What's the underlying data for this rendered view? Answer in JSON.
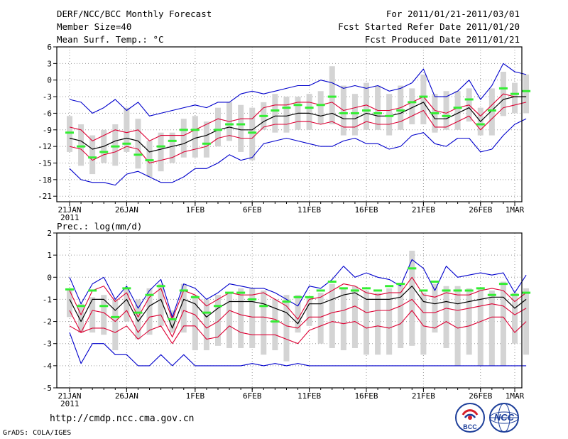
{
  "header": {
    "title": "DERF/NCC/BCC Monthly Forecast",
    "member_size": "Member Size=40",
    "variable": "Mean Surf. Temp.: °C",
    "period": "For 2011/01/21-2011/03/01",
    "started": "Fcst Started Refer Date 2011/01/20",
    "produced": "Fcst Produced Date 2011/01/21"
  },
  "footer": {
    "url": "http://cmdp.ncc.cma.gov.cn",
    "grads": "GrADS: COLA/IGES",
    "logo_bcc": "BCC",
    "logo_ncc": "NCC"
  },
  "colors": {
    "envelope": "#0000cc",
    "spread": "#dd0033",
    "mean": "#000000",
    "member_mark": "#33ee33",
    "box": "#d4d4d4"
  },
  "chart_data": [
    {
      "type": "line",
      "title": "Mean Surf. Temp.: °C",
      "x_ticks": [
        "21JAN",
        "26JAN",
        "1FEB",
        "6FEB",
        "11FEB",
        "16FEB",
        "21FEB",
        "26FEB",
        "1MAR"
      ],
      "x_tick_days": [
        0,
        5,
        11,
        16,
        21,
        26,
        31,
        36,
        39
      ],
      "x_year": "2011",
      "ylim": [
        -22,
        6
      ],
      "y_ticks": [
        6,
        3,
        0,
        -3,
        -6,
        -9,
        -12,
        -15,
        -18,
        -21
      ],
      "y_tick_labels": [
        "6",
        "3",
        "0",
        "-3",
        "-6",
        "-9",
        "-12",
        "-15",
        "-18",
        "-21"
      ],
      "grid": true,
      "series": [
        {
          "name": "max",
          "values": [
            -3.5,
            -4,
            -6,
            -5,
            -3.5,
            -5.5,
            -4,
            -6.5,
            -6,
            -5.5,
            -5,
            -4.5,
            -5,
            -4,
            -4,
            -2.5,
            -2,
            -2.5,
            -2,
            -1.5,
            -1,
            -1,
            0,
            -0.5,
            -1.5,
            -1,
            -1.5,
            -1,
            -2,
            -1.5,
            -0.5,
            2,
            -3,
            -3,
            -2,
            0,
            -3.5,
            -1,
            3,
            1.5,
            1
          ]
        },
        {
          "name": "upper",
          "values": [
            -8.5,
            -9,
            -11,
            -10,
            -9,
            -9.5,
            -9,
            -11,
            -10,
            -10,
            -10,
            -9,
            -8,
            -7,
            -7.5,
            -7,
            -7,
            -5,
            -4.5,
            -4.5,
            -4,
            -4,
            -4.5,
            -4,
            -5.5,
            -5,
            -4.5,
            -5.5,
            -5.5,
            -5,
            -4,
            -3,
            -5.5,
            -6,
            -5,
            -4.5,
            -6.5,
            -4.5,
            -2.5,
            -3,
            -3
          ]
        },
        {
          "name": "mean",
          "values": [
            -10.5,
            -11,
            -12.5,
            -12,
            -11,
            -10.5,
            -11,
            -13,
            -12.5,
            -12,
            -11.5,
            -10.5,
            -10,
            -9,
            -8.5,
            -9,
            -9,
            -7.5,
            -6.5,
            -6.5,
            -6,
            -6,
            -6.5,
            -6,
            -7,
            -7,
            -6,
            -6.5,
            -6.5,
            -6,
            -5,
            -4,
            -7,
            -7,
            -6,
            -5,
            -7.5,
            -5.5,
            -3.5,
            -3,
            -3
          ]
        },
        {
          "name": "lower",
          "values": [
            -12,
            -12.5,
            -14.5,
            -13.5,
            -13,
            -12,
            -12.5,
            -15,
            -14.5,
            -14,
            -13,
            -12.5,
            -12,
            -10.5,
            -10,
            -10.5,
            -10.5,
            -8.5,
            -8,
            -8,
            -7.5,
            -7.5,
            -8,
            -7.5,
            -8.5,
            -8.5,
            -7.5,
            -8,
            -8,
            -7.5,
            -6.5,
            -5.5,
            -8.5,
            -8.5,
            -7.5,
            -6.5,
            -9,
            -7,
            -5,
            -4.5,
            -4
          ]
        },
        {
          "name": "min",
          "values": [
            -16,
            -18,
            -18.5,
            -18.5,
            -19,
            -17,
            -16.5,
            -17.5,
            -18.5,
            -18.5,
            -17.5,
            -16,
            -16,
            -15,
            -13.5,
            -14.5,
            -14,
            -11.5,
            -11,
            -10.5,
            -11,
            -11.5,
            -12,
            -12,
            -11,
            -10.5,
            -11.5,
            -11.5,
            -12.5,
            -12,
            -10,
            -9.5,
            -11.5,
            -12,
            -10.5,
            -10.5,
            -13,
            -12.5,
            -10,
            -8,
            -7
          ]
        },
        {
          "name": "member_mark",
          "values": [
            -9.5,
            -12,
            -14,
            -13,
            -12,
            -11.5,
            -13.5,
            -14.5,
            -12,
            -11,
            -9,
            -9,
            -11.5,
            -9,
            -8,
            -8,
            -9.5,
            -6.5,
            -5.5,
            -5,
            -4.5,
            -5,
            -4.5,
            -3,
            -6,
            -6,
            -5.5,
            -6,
            -6.5,
            -5.5,
            -4,
            -3,
            -6,
            -6.5,
            -5,
            -3.5,
            -8,
            -5.5,
            -1.5,
            -2.5,
            -2
          ]
        },
        {
          "name": "box_top",
          "values": [
            -6.5,
            -8,
            -10,
            -9,
            -8,
            -5,
            -7,
            -11,
            -9.5,
            -9.5,
            -7,
            -6.5,
            -7.5,
            -5,
            -4,
            -4.5,
            -5,
            -4,
            -2.5,
            -3,
            -3,
            -2.5,
            -2,
            2.5,
            -1,
            -2.5,
            -0.5,
            -1,
            -2.5,
            -1,
            -1.5,
            1,
            -2.5,
            -2,
            -2,
            -1.5,
            -5,
            -1.5,
            1.5,
            -0.5,
            1
          ]
        },
        {
          "name": "box_bottom",
          "values": [
            -13,
            -15.5,
            -17,
            -15,
            -15.5,
            -13,
            -16,
            -17.5,
            -16.5,
            -15,
            -14,
            -14,
            -14,
            -12,
            -11,
            -13,
            -14.5,
            -9,
            -9.5,
            -9.5,
            -9,
            -9,
            -8,
            -8,
            -10,
            -10,
            -9,
            -9,
            -10,
            -9,
            -8,
            -8,
            -9.5,
            -9,
            -9,
            -7.5,
            -10,
            -10,
            -6.5,
            -6,
            -6
          ]
        }
      ]
    },
    {
      "type": "line",
      "title": "Prec.: log(mm/d)",
      "x_ticks": [
        "21JAN",
        "26JAN",
        "1FEB",
        "6FEB",
        "11FEB",
        "16FEB",
        "21FEB",
        "26FEB",
        "1MAR"
      ],
      "x_tick_days": [
        0,
        5,
        11,
        16,
        21,
        26,
        31,
        36,
        39
      ],
      "x_year": "2011",
      "ylim": [
        -5,
        2
      ],
      "y_ticks": [
        2,
        1,
        0,
        -1,
        -2,
        -3,
        -4,
        -5
      ],
      "y_tick_labels": [
        "2",
        "1",
        "0",
        "-1",
        "-2",
        "-3",
        "-4",
        "-5"
      ],
      "grid": true,
      "series": [
        {
          "name": "max",
          "values": [
            0,
            -1.2,
            -0.3,
            0,
            -1,
            -0.4,
            -1.4,
            -0.6,
            -0.1,
            -1.8,
            -0.3,
            -0.5,
            -1,
            -0.7,
            -0.3,
            -0.4,
            -0.5,
            -0.5,
            -0.7,
            -1,
            -1.3,
            -0.4,
            -0.5,
            -0.1,
            0.5,
            0,
            0.2,
            0,
            -0.1,
            -0.4,
            0.8,
            0.4,
            -0.6,
            0.5,
            0,
            0.1,
            0.2,
            0.1,
            0.2,
            -0.7,
            0.1
          ]
        },
        {
          "name": "upper",
          "values": [
            -0.6,
            -1.7,
            -0.6,
            -0.4,
            -1.1,
            -0.7,
            -1.8,
            -0.9,
            -0.5,
            -1.9,
            -0.6,
            -0.8,
            -1.3,
            -1,
            -0.7,
            -0.8,
            -0.8,
            -0.7,
            -1,
            -1.3,
            -1.9,
            -1,
            -0.9,
            -0.6,
            -0.3,
            -0.4,
            -0.7,
            -0.8,
            -0.7,
            -0.7,
            0,
            -0.8,
            -0.9,
            -0.7,
            -0.8,
            -0.8,
            -0.6,
            -0.5,
            -0.6,
            -1.1,
            -0.7
          ]
        },
        {
          "name": "mean",
          "values": [
            -1,
            -2,
            -1,
            -1,
            -1.5,
            -1,
            -2,
            -1.3,
            -1,
            -2.3,
            -1,
            -1.2,
            -1.8,
            -1.4,
            -1.1,
            -1.1,
            -1.1,
            -1.2,
            -1.4,
            -1.6,
            -2.1,
            -1.2,
            -1.2,
            -1,
            -0.8,
            -0.7,
            -1,
            -1,
            -1,
            -0.9,
            -0.4,
            -1.1,
            -1.2,
            -1.1,
            -1.2,
            -1.1,
            -1,
            -0.9,
            -0.9,
            -1.4,
            -1
          ]
        },
        {
          "name": "lower",
          "values": [
            -1.5,
            -2.5,
            -1.5,
            -1.6,
            -2,
            -1.5,
            -2.5,
            -1.8,
            -1.7,
            -2.7,
            -1.5,
            -1.7,
            -2.3,
            -2,
            -1.5,
            -1.7,
            -1.8,
            -1.8,
            -1.9,
            -2.2,
            -2.3,
            -1.8,
            -1.8,
            -1.6,
            -1.5,
            -1.3,
            -1.6,
            -1.5,
            -1.5,
            -1.3,
            -1,
            -1.6,
            -1.6,
            -1.4,
            -1.5,
            -1.4,
            -1.3,
            -1.2,
            -1.3,
            -1.7,
            -1.4
          ]
        },
        {
          "name": "lowest",
          "values": [
            -2.2,
            -2.5,
            -2.3,
            -2.3,
            -2.5,
            -2.2,
            -2.8,
            -2.4,
            -2.2,
            -3,
            -2.2,
            -2.2,
            -2.8,
            -2.7,
            -2.2,
            -2.5,
            -2.6,
            -2.6,
            -2.6,
            -2.8,
            -3,
            -2.4,
            -2.2,
            -2,
            -2.1,
            -2,
            -2.3,
            -2.2,
            -2.3,
            -2.1,
            -1.5,
            -2.2,
            -2.3,
            -2,
            -2.3,
            -2.2,
            -2,
            -1.8,
            -1.8,
            -2.5,
            -2
          ]
        },
        {
          "name": "min",
          "values": [
            -2.5,
            -3.9,
            -3,
            -3,
            -3.5,
            -3.5,
            -4,
            -4,
            -3.5,
            -4,
            -3.5,
            -4,
            -4,
            -4,
            -4,
            -4,
            -3.9,
            -4,
            -3.9,
            -4,
            -3.9,
            -4,
            -4,
            -4,
            -4,
            -4,
            -4,
            -4,
            -4,
            -4,
            -4,
            -4,
            -4,
            -4,
            -4,
            -4,
            -4,
            -4,
            -4,
            -4,
            -4
          ]
        },
        {
          "name": "member_mark",
          "values": [
            -0.55,
            -1.3,
            -0.6,
            -1.3,
            -1.8,
            -0.5,
            -1.6,
            -0.8,
            -0.4,
            -1.9,
            -0.6,
            -0.9,
            -1.6,
            -1.3,
            -0.7,
            -0.7,
            -1,
            -1.3,
            -2,
            -1.1,
            -0.9,
            -0.9,
            -0.6,
            -0.2,
            -0.5,
            -0.6,
            -0.5,
            -0.6,
            -0.4,
            -0.3,
            0.4,
            -0.6,
            -0.2,
            -0.6,
            -0.6,
            -0.6,
            -0.5,
            -0.8,
            -0.3,
            -0.8,
            -0.7
          ]
        },
        {
          "name": "box_top",
          "values": [
            -0.6,
            -1.2,
            -0.9,
            -0.8,
            -1,
            -0.5,
            -1,
            -0.5,
            -0.3,
            -1.5,
            -0.3,
            -0.8,
            -1,
            -0.8,
            -0.7,
            -0.5,
            -0.5,
            -0.6,
            -1,
            -0.8,
            -0.8,
            -0.9,
            -0.7,
            -0.3,
            -0.5,
            -0.4,
            -0.6,
            -0.7,
            -0.5,
            -0.3,
            1.2,
            -0.7,
            -0.3,
            -0.4,
            -0.4,
            -0.5,
            -0.5,
            -0.6,
            -0.2,
            -0.7,
            -0.5
          ]
        },
        {
          "name": "box_bottom",
          "values": [
            -1.8,
            -2.5,
            -2.5,
            -2.6,
            -3.3,
            -2,
            -2.8,
            -2.6,
            -2.2,
            -2.5,
            -2.5,
            -3.3,
            -3.3,
            -3.1,
            -3.2,
            -3.2,
            -3.2,
            -3.5,
            -3.3,
            -3.8,
            -2.5,
            -2.2,
            -3,
            -3.2,
            -3.3,
            -3.2,
            -3.5,
            -3.5,
            -3.5,
            -3.2,
            -3.1,
            -3.5,
            -2.5,
            -3.2,
            -4,
            -3.5,
            -4,
            -4,
            -4,
            -3,
            -3.5
          ]
        }
      ]
    }
  ]
}
